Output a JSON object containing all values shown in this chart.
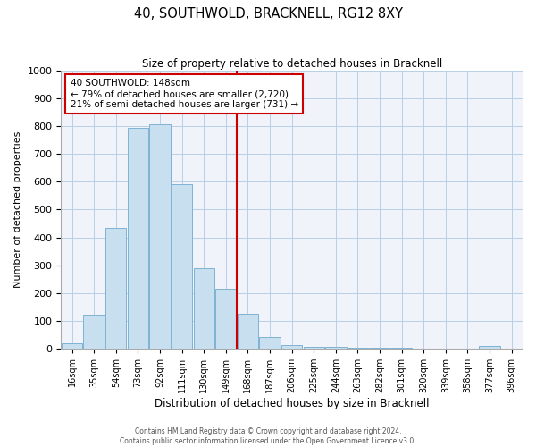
{
  "title": "40, SOUTHWOLD, BRACKNELL, RG12 8XY",
  "subtitle": "Size of property relative to detached houses in Bracknell",
  "xlabel": "Distribution of detached houses by size in Bracknell",
  "ylabel": "Number of detached properties",
  "bar_labels": [
    "16sqm",
    "35sqm",
    "54sqm",
    "73sqm",
    "92sqm",
    "111sqm",
    "130sqm",
    "149sqm",
    "168sqm",
    "187sqm",
    "206sqm",
    "225sqm",
    "244sqm",
    "263sqm",
    "282sqm",
    "301sqm",
    "320sqm",
    "339sqm",
    "358sqm",
    "377sqm",
    "396sqm"
  ],
  "bar_values": [
    18,
    120,
    435,
    795,
    808,
    590,
    290,
    215,
    125,
    42,
    13,
    5,
    5,
    3,
    2,
    1,
    0,
    0,
    0,
    8,
    0
  ],
  "bar_color": "#c8dff0",
  "bar_edge_color": "#7fb3d3",
  "vline_x": 7.5,
  "vline_color": "#cc0000",
  "annotation_title": "40 SOUTHWOLD: 148sqm",
  "annotation_line1": "← 79% of detached houses are smaller (2,720)",
  "annotation_line2": "21% of semi-detached houses are larger (731) →",
  "annotation_box_facecolor": "#ffffff",
  "annotation_box_edgecolor": "#cc0000",
  "ylim": [
    0,
    1000
  ],
  "yticks": [
    0,
    100,
    200,
    300,
    400,
    500,
    600,
    700,
    800,
    900,
    1000
  ],
  "bg_color": "#f0f4fa",
  "footer1": "Contains HM Land Registry data © Crown copyright and database right 2024.",
  "footer2": "Contains public sector information licensed under the Open Government Licence v3.0."
}
